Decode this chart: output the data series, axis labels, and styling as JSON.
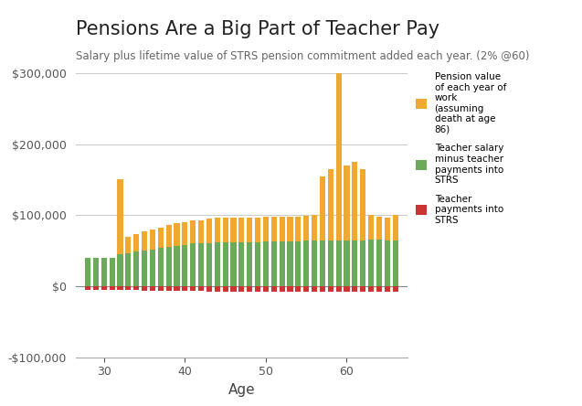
{
  "title": "Pensions Are a Big Part of Teacher Pay",
  "subtitle": "Salary plus lifetime value of STRS pension commitment added each year. (2% @60)",
  "xlabel": "Age",
  "ages": [
    28,
    29,
    30,
    31,
    32,
    33,
    34,
    35,
    36,
    37,
    38,
    39,
    40,
    41,
    42,
    43,
    44,
    45,
    46,
    47,
    48,
    49,
    50,
    51,
    52,
    53,
    54,
    55,
    56,
    57,
    58,
    59,
    60,
    61,
    62,
    63,
    64,
    65,
    66
  ],
  "pension_vals": [
    0,
    0,
    0,
    0,
    105000,
    22000,
    25000,
    27000,
    28000,
    28000,
    30000,
    32000,
    32000,
    33000,
    33000,
    34000,
    34000,
    34000,
    34000,
    34000,
    34000,
    34000,
    35000,
    35000,
    35000,
    35000,
    35000,
    35000,
    37000,
    90000,
    100000,
    280000,
    105000,
    110000,
    100000,
    35000,
    32000,
    32000,
    35000
  ],
  "salary_net_vals": [
    40000,
    40000,
    40000,
    40000,
    45000,
    47000,
    49000,
    50000,
    52000,
    54000,
    56000,
    57000,
    58000,
    60000,
    60000,
    61000,
    62000,
    62000,
    62000,
    62000,
    62000,
    62000,
    63000,
    63000,
    63000,
    63000,
    63000,
    64000,
    64000,
    65000,
    65000,
    65000,
    65000,
    65000,
    65000,
    66000,
    66000,
    65000,
    65000
  ],
  "strs_vals": [
    -4500,
    -4500,
    -4500,
    -4500,
    -5200,
    -5500,
    -5700,
    -5800,
    -6000,
    -6200,
    -6400,
    -6600,
    -6700,
    -7000,
    -7000,
    -7100,
    -7200,
    -7200,
    -7200,
    -7200,
    -7200,
    -7200,
    -7300,
    -7300,
    -7300,
    -7300,
    -7400,
    -7400,
    -7400,
    -7500,
    -7500,
    -7500,
    -7500,
    -7500,
    -7500,
    -7600,
    -7600,
    -7600,
    -7600
  ],
  "orange_color": "#f0a830",
  "green_color": "#6aaa5a",
  "red_color": "#cc3333",
  "bg_color": "#ffffff",
  "grid_color": "#cccccc",
  "ylim_min": -100000,
  "ylim_max": 300000,
  "legend_labels": [
    "Pension value\nof each year of\nwork\n(assuming\ndeath at age\n86)",
    "Teacher salary\nminus teacher\npayments into\nSTRS",
    "Teacher\npayments into\nSTRS"
  ]
}
